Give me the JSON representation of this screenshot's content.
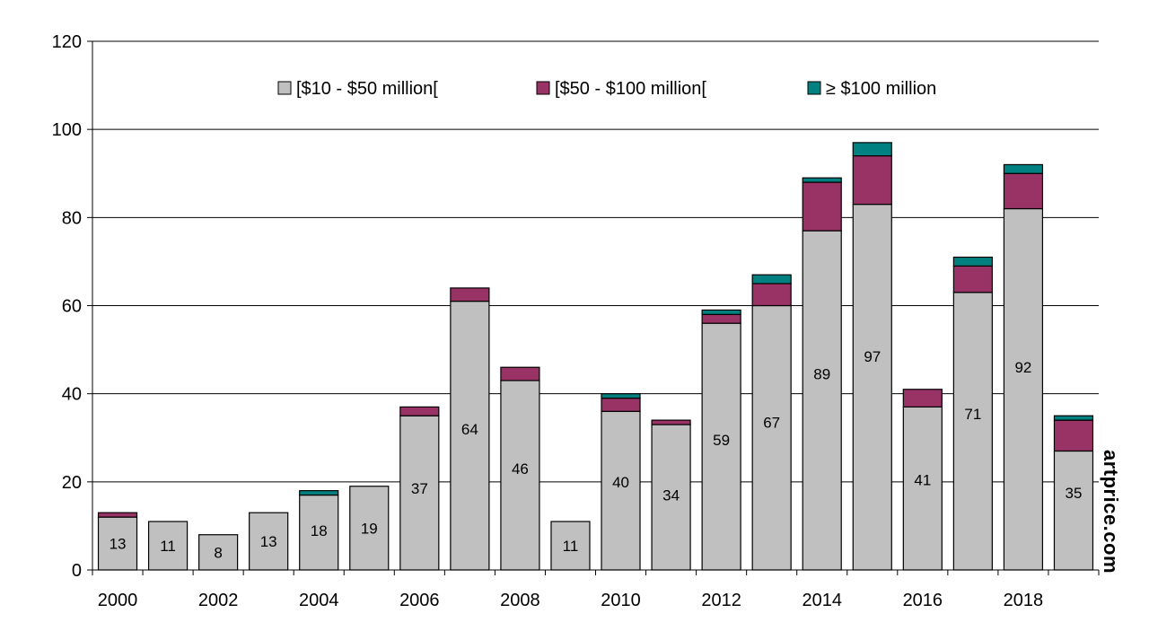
{
  "chart_data": {
    "type": "bar",
    "stacked": true,
    "title": "",
    "xlabel": "",
    "ylabel": "",
    "ylim": [
      0,
      120
    ],
    "yticks": [
      0,
      20,
      40,
      60,
      80,
      100,
      120
    ],
    "grid": true,
    "legend_position": "top",
    "categories": [
      "2000",
      "2001",
      "2002",
      "2003",
      "2004",
      "2005",
      "2006",
      "2007",
      "2008",
      "2009",
      "2010",
      "2011",
      "2012",
      "2013",
      "2014",
      "2015",
      "2016",
      "2017",
      "2018",
      "2019"
    ],
    "x_tick_labels": [
      "2000",
      "",
      "2002",
      "",
      "2004",
      "",
      "2006",
      "",
      "2008",
      "",
      "2010",
      "",
      "2012",
      "",
      "2014",
      "",
      "2016",
      "",
      "2018",
      ""
    ],
    "series": [
      {
        "name": "[$10 - $50 million[",
        "color": "#c0c0c0",
        "values": [
          12,
          11,
          8,
          13,
          17,
          19,
          35,
          61,
          43,
          11,
          36,
          33,
          56,
          60,
          77,
          83,
          37,
          63,
          82,
          27
        ]
      },
      {
        "name": "[$50 - $100 million[",
        "color": "#993366",
        "values": [
          1,
          0,
          0,
          0,
          0,
          0,
          2,
          3,
          3,
          0,
          3,
          1,
          2,
          5,
          11,
          11,
          4,
          6,
          8,
          7
        ]
      },
      {
        "name": "≥ $100 million",
        "color": "#008080",
        "values": [
          0,
          0,
          0,
          0,
          1,
          0,
          0,
          0,
          0,
          0,
          1,
          0,
          1,
          2,
          1,
          3,
          0,
          2,
          2,
          1
        ]
      }
    ],
    "totals": [
      13,
      11,
      8,
      13,
      18,
      19,
      37,
      64,
      46,
      11,
      40,
      34,
      59,
      67,
      89,
      97,
      41,
      71,
      92,
      35
    ],
    "total_label_text": [
      "13",
      "11",
      "8",
      "13",
      "18",
      "19",
      "37",
      "64",
      "46",
      "11",
      "40",
      "34",
      "59",
      "67",
      "89",
      "97",
      "41",
      "71",
      "92",
      "35"
    ]
  },
  "watermark": {
    "text": "artprice.com"
  }
}
